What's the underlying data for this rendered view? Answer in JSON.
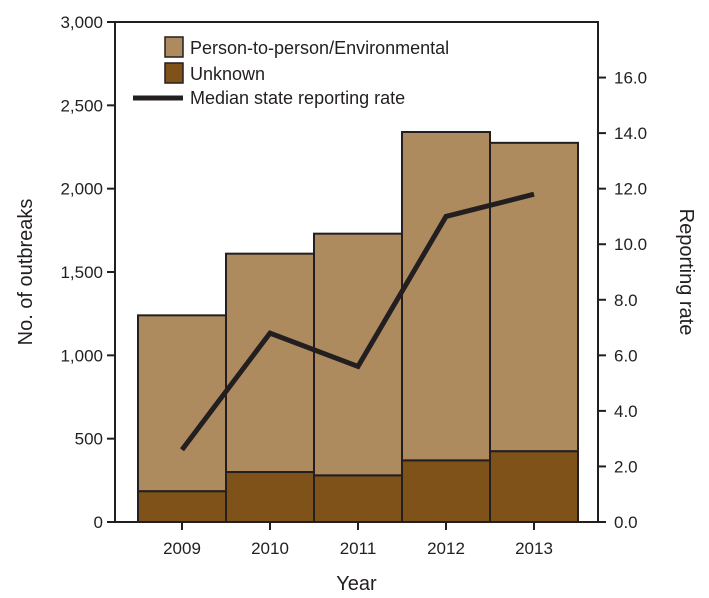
{
  "chart_data": {
    "type": "bar",
    "stacked": true,
    "categories": [
      "2009",
      "2010",
      "2011",
      "2012",
      "2013"
    ],
    "series": [
      {
        "name": "Unknown",
        "type": "bar",
        "axis": "left",
        "color": "#7f5219",
        "values": [
          185,
          300,
          280,
          370,
          425
        ]
      },
      {
        "name": "Person-to-person/Environmental",
        "type": "bar",
        "axis": "left",
        "color": "#ae8b5f",
        "values": [
          1055,
          1310,
          1450,
          1970,
          1850
        ]
      },
      {
        "name": "Median state reporting rate",
        "type": "line",
        "axis": "right",
        "color": "#231f20",
        "values": [
          2.6,
          6.8,
          5.6,
          11.0,
          11.8
        ]
      }
    ],
    "xlabel": "Year",
    "ylabel": "No. of outbreaks",
    "y2label": "Reporting rate",
    "ylim": [
      0,
      3000
    ],
    "y2lim": [
      0,
      18
    ],
    "yticks": [
      "0",
      "500",
      "1,000",
      "1,500",
      "2,000",
      "2,500",
      "3,000"
    ],
    "y2ticks": [
      "0.0",
      "2.0",
      "4.0",
      "6.0",
      "8.0",
      "10.0",
      "12.0",
      "14.0",
      "16.0"
    ],
    "legend": {
      "placement": "top-left",
      "entries": [
        "Person-to-person/Environmental",
        "Unknown",
        "Median state reporting rate"
      ]
    },
    "grid": false
  }
}
